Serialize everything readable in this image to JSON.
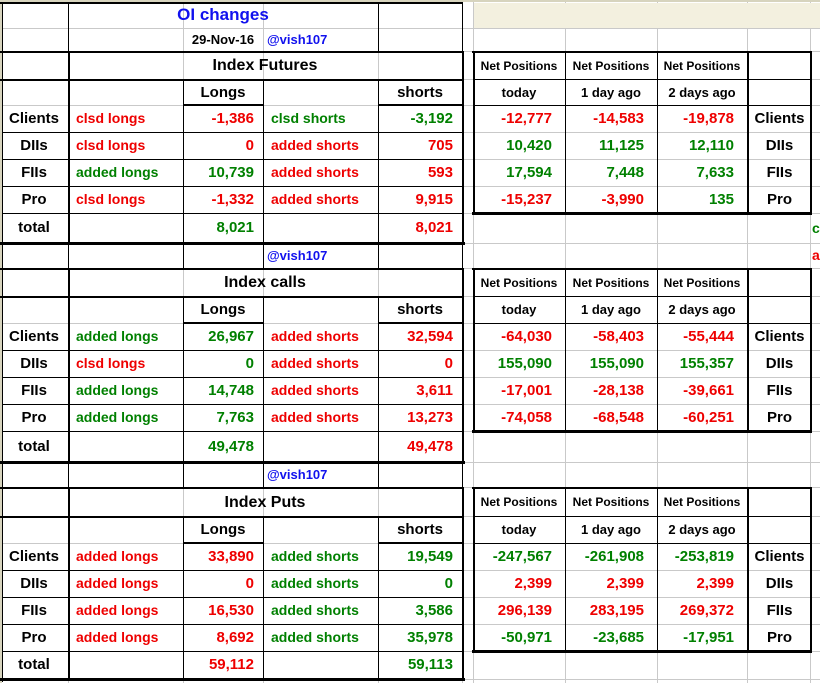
{
  "header": {
    "title": "OI changes",
    "date": "29-Nov-16",
    "handle": "@vish107"
  },
  "colors": {
    "red": "#ee0000",
    "green": "#008000",
    "blue": "#1111ee",
    "black": "#000000"
  },
  "left_headers": {
    "longs": "Longs",
    "shorts": "shorts"
  },
  "net_header": "Net Positions",
  "net_subheaders": [
    "today",
    "1 day ago",
    "2 days ago"
  ],
  "total_label": "total",
  "sections": [
    {
      "title": "Index Futures",
      "rows": [
        {
          "label": "Clients",
          "long_action": {
            "text": "clsd longs",
            "color": "red"
          },
          "long_value": {
            "text": "-1,386",
            "color": "red"
          },
          "short_action": {
            "text": "clsd shorts",
            "color": "green"
          },
          "short_value": {
            "text": "-3,192",
            "color": "green"
          },
          "net": [
            {
              "text": "-12,777",
              "color": "red"
            },
            {
              "text": "-14,583",
              "color": "red"
            },
            {
              "text": "-19,878",
              "color": "red"
            }
          ]
        },
        {
          "label": "DIIs",
          "long_action": {
            "text": "clsd longs",
            "color": "red"
          },
          "long_value": {
            "text": "0",
            "color": "red"
          },
          "short_action": {
            "text": "added shorts",
            "color": "red"
          },
          "short_value": {
            "text": "705",
            "color": "red"
          },
          "net": [
            {
              "text": "10,420",
              "color": "green"
            },
            {
              "text": "11,125",
              "color": "green"
            },
            {
              "text": "12,110",
              "color": "green"
            }
          ]
        },
        {
          "label": "FIIs",
          "long_action": {
            "text": "added longs",
            "color": "green"
          },
          "long_value": {
            "text": "10,739",
            "color": "green"
          },
          "short_action": {
            "text": "added shorts",
            "color": "red"
          },
          "short_value": {
            "text": "593",
            "color": "red"
          },
          "net": [
            {
              "text": "17,594",
              "color": "green"
            },
            {
              "text": "7,448",
              "color": "green"
            },
            {
              "text": "7,633",
              "color": "green"
            }
          ]
        },
        {
          "label": "Pro",
          "long_action": {
            "text": "clsd longs",
            "color": "red"
          },
          "long_value": {
            "text": "-1,332",
            "color": "red"
          },
          "short_action": {
            "text": "added shorts",
            "color": "red"
          },
          "short_value": {
            "text": "9,915",
            "color": "red"
          },
          "net": [
            {
              "text": "-15,237",
              "color": "red"
            },
            {
              "text": "-3,990",
              "color": "red"
            },
            {
              "text": "135",
              "color": "green"
            }
          ]
        }
      ],
      "total": {
        "longs": {
          "text": "8,021",
          "color": "green"
        },
        "shorts": {
          "text": "8,021",
          "color": "red"
        }
      }
    },
    {
      "title": "Index calls",
      "rows": [
        {
          "label": "Clients",
          "long_action": {
            "text": "added longs",
            "color": "green"
          },
          "long_value": {
            "text": "26,967",
            "color": "green"
          },
          "short_action": {
            "text": "added shorts",
            "color": "red"
          },
          "short_value": {
            "text": "32,594",
            "color": "red"
          },
          "net": [
            {
              "text": "-64,030",
              "color": "red"
            },
            {
              "text": "-58,403",
              "color": "red"
            },
            {
              "text": "-55,444",
              "color": "red"
            }
          ]
        },
        {
          "label": "DIIs",
          "long_action": {
            "text": "clsd longs",
            "color": "red"
          },
          "long_value": {
            "text": "0",
            "color": "green"
          },
          "short_action": {
            "text": "added shorts",
            "color": "red"
          },
          "short_value": {
            "text": "0",
            "color": "red"
          },
          "net": [
            {
              "text": "155,090",
              "color": "green"
            },
            {
              "text": "155,090",
              "color": "green"
            },
            {
              "text": "155,357",
              "color": "green"
            }
          ]
        },
        {
          "label": "FIIs",
          "long_action": {
            "text": "added longs",
            "color": "green"
          },
          "long_value": {
            "text": "14,748",
            "color": "green"
          },
          "short_action": {
            "text": "added shorts",
            "color": "red"
          },
          "short_value": {
            "text": "3,611",
            "color": "red"
          },
          "net": [
            {
              "text": "-17,001",
              "color": "red"
            },
            {
              "text": "-28,138",
              "color": "red"
            },
            {
              "text": "-39,661",
              "color": "red"
            }
          ]
        },
        {
          "label": "Pro",
          "long_action": {
            "text": "added longs",
            "color": "green"
          },
          "long_value": {
            "text": "7,763",
            "color": "green"
          },
          "short_action": {
            "text": "added shorts",
            "color": "red"
          },
          "short_value": {
            "text": "13,273",
            "color": "red"
          },
          "net": [
            {
              "text": "-74,058",
              "color": "red"
            },
            {
              "text": "-68,548",
              "color": "red"
            },
            {
              "text": "-60,251",
              "color": "red"
            }
          ]
        }
      ],
      "total": {
        "longs": {
          "text": "49,478",
          "color": "green"
        },
        "shorts": {
          "text": "49,478",
          "color": "red"
        }
      }
    },
    {
      "title": "Index Puts",
      "rows": [
        {
          "label": "Clients",
          "long_action": {
            "text": "added longs",
            "color": "red"
          },
          "long_value": {
            "text": "33,890",
            "color": "red"
          },
          "short_action": {
            "text": "added shorts",
            "color": "green"
          },
          "short_value": {
            "text": "19,549",
            "color": "green"
          },
          "net": [
            {
              "text": "-247,567",
              "color": "green"
            },
            {
              "text": "-261,908",
              "color": "green"
            },
            {
              "text": "-253,819",
              "color": "green"
            }
          ]
        },
        {
          "label": "DIIs",
          "long_action": {
            "text": "added longs",
            "color": "red"
          },
          "long_value": {
            "text": "0",
            "color": "red"
          },
          "short_action": {
            "text": "added shorts",
            "color": "green"
          },
          "short_value": {
            "text": "0",
            "color": "green"
          },
          "net": [
            {
              "text": "2,399",
              "color": "red"
            },
            {
              "text": "2,399",
              "color": "red"
            },
            {
              "text": "2,399",
              "color": "red"
            }
          ]
        },
        {
          "label": "FIIs",
          "long_action": {
            "text": "added longs",
            "color": "red"
          },
          "long_value": {
            "text": "16,530",
            "color": "red"
          },
          "short_action": {
            "text": "added shorts",
            "color": "green"
          },
          "short_value": {
            "text": "3,586",
            "color": "green"
          },
          "net": [
            {
              "text": "296,139",
              "color": "red"
            },
            {
              "text": "283,195",
              "color": "red"
            },
            {
              "text": "269,372",
              "color": "red"
            }
          ]
        },
        {
          "label": "Pro",
          "long_action": {
            "text": "added longs",
            "color": "red"
          },
          "long_value": {
            "text": "8,692",
            "color": "red"
          },
          "short_action": {
            "text": "added shorts",
            "color": "green"
          },
          "short_value": {
            "text": "35,978",
            "color": "green"
          },
          "net": [
            {
              "text": "-50,971",
              "color": "green"
            },
            {
              "text": "-23,685",
              "color": "green"
            },
            {
              "text": "-17,951",
              "color": "green"
            }
          ]
        }
      ],
      "total": {
        "longs": {
          "text": "59,112",
          "color": "red"
        },
        "shorts": {
          "text": "59,113",
          "color": "green"
        }
      }
    }
  ],
  "edge_fragments": [
    {
      "text": "c",
      "color": "green"
    },
    {
      "text": "a",
      "color": "red"
    }
  ]
}
